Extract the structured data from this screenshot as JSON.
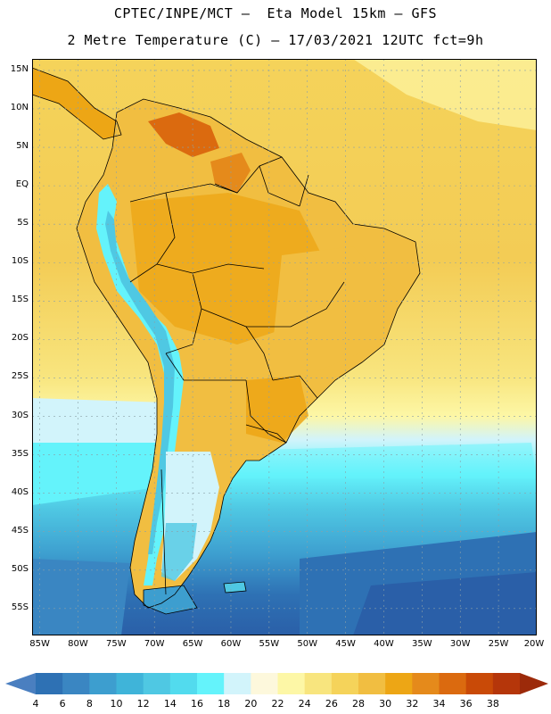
{
  "header": {
    "title_line1": "CPTEC/INPE/MCT –  Eta Model 15km – GFS",
    "title_line2": "2 Metre Temperature (C) – 17/03/2021 12UTC fct=9h"
  },
  "map": {
    "lon_range": [
      -86,
      -20
    ],
    "lat_range": [
      -58.5,
      16.5
    ],
    "lat_labels": [
      "15N",
      "10N",
      "5N",
      "EQ",
      "5S",
      "10S",
      "15S",
      "20S",
      "25S",
      "30S",
      "35S",
      "40S",
      "45S",
      "50S",
      "55S"
    ],
    "lat_values": [
      15,
      10,
      5,
      0,
      -5,
      -10,
      -15,
      -20,
      -25,
      -30,
      -35,
      -40,
      -45,
      -50,
      -55
    ],
    "lon_labels": [
      "85W",
      "80W",
      "75W",
      "70W",
      "65W",
      "60W",
      "55W",
      "50W",
      "45W",
      "40W",
      "35W",
      "30W",
      "25W",
      "20W"
    ],
    "lon_values": [
      -85,
      -80,
      -75,
      -70,
      -65,
      -60,
      -55,
      -50,
      -45,
      -40,
      -35,
      -30,
      -25,
      -20
    ]
  },
  "colorbar": {
    "labels": [
      "4",
      "6",
      "8",
      "10",
      "12",
      "14",
      "16",
      "18",
      "20",
      "22",
      "24",
      "26",
      "28",
      "30",
      "32",
      "34",
      "36",
      "38"
    ],
    "colors": [
      "#4a7fc0",
      "#2e71b4",
      "#3a86c2",
      "#3d9ecf",
      "#3fb4d9",
      "#4fc8e3",
      "#52dbee",
      "#64f3fb",
      "#d2f4fb",
      "#fdf8dc",
      "#fdf7a6",
      "#f8e57e",
      "#f5d35a",
      "#f1be41",
      "#eda615",
      "#e58a1b",
      "#db6a0f",
      "#c94a07",
      "#b5360a",
      "#9c2a0a"
    ]
  }
}
